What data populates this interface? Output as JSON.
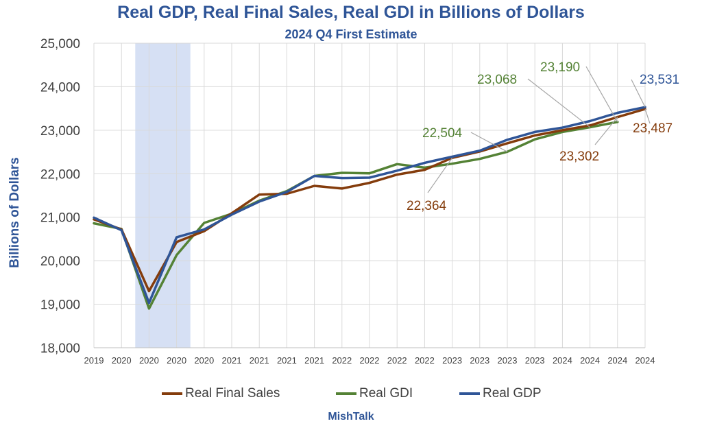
{
  "chart_data": {
    "type": "line",
    "title": "Real GDP, Real Final Sales, Real GDI in Billions of Dollars",
    "subtitle": "2024 Q4 First Estimate",
    "ylabel": "Billions of Dollars",
    "xlabel": "",
    "ylim": [
      18000,
      25000
    ],
    "yticks": [
      18000,
      19000,
      20000,
      21000,
      22000,
      23000,
      24000,
      25000
    ],
    "ytick_labels": [
      "18,000",
      "19,000",
      "20,000",
      "21,000",
      "22,000",
      "23,000",
      "24,000",
      "25,000"
    ],
    "categories": [
      "2019",
      "2020",
      "2020",
      "2020",
      "2020",
      "2021",
      "2021",
      "2021",
      "2021",
      "2022",
      "2022",
      "2022",
      "2022",
      "2023",
      "2023",
      "2023",
      "2023",
      "2024",
      "2024",
      "2024",
      "2024"
    ],
    "recession_shade": {
      "from_index": 1.5,
      "to_index": 3.5,
      "color": "#D6E0F4"
    },
    "grid": true,
    "series": [
      {
        "name": "Real Final Sales",
        "color": "#843C0C",
        "values": [
          20950,
          20720,
          19300,
          20430,
          20680,
          21090,
          21520,
          21540,
          21720,
          21660,
          21790,
          21980,
          22090,
          22364,
          22510,
          22700,
          22880,
          23000,
          23110,
          23302,
          23487
        ]
      },
      {
        "name": "Real GDI",
        "color": "#548235",
        "values": [
          20860,
          20730,
          18900,
          20130,
          20870,
          21080,
          21380,
          21600,
          21950,
          22020,
          22010,
          22220,
          22140,
          22230,
          22340,
          22504,
          22790,
          22960,
          23068,
          23190,
          null
        ]
      },
      {
        "name": "Real GDP",
        "color": "#2F5597",
        "values": [
          20990,
          20700,
          19030,
          20540,
          20720,
          21060,
          21360,
          21580,
          21950,
          21900,
          21910,
          22070,
          22250,
          22390,
          22530,
          22780,
          22960,
          23060,
          23210,
          23400,
          23531
        ]
      }
    ],
    "annotations": [
      {
        "text": "23,531",
        "series": "Real GDP",
        "index": 20,
        "value": 23531,
        "color": "#2F5597"
      },
      {
        "text": "23,487",
        "series": "Real Final Sales",
        "index": 20,
        "value": 23487,
        "color": "#843C0C"
      },
      {
        "text": "23,302",
        "series": "Real Final Sales",
        "index": 19,
        "value": 23302,
        "color": "#843C0C"
      },
      {
        "text": "23,190",
        "series": "Real GDI",
        "index": 19,
        "value": 23190,
        "color": "#548235"
      },
      {
        "text": "23,068",
        "series": "Real GDI",
        "index": 18,
        "value": 23068,
        "color": "#548235"
      },
      {
        "text": "22,504",
        "series": "Real GDI",
        "index": 15,
        "value": 22504,
        "color": "#548235"
      },
      {
        "text": "22,364",
        "series": "Real Final Sales",
        "index": 13,
        "value": 22364,
        "color": "#843C0C"
      }
    ],
    "legend": [
      "Real Final Sales",
      "Real GDI",
      "Real GDP"
    ],
    "legend_position": "bottom"
  },
  "footer": "MishTalk"
}
